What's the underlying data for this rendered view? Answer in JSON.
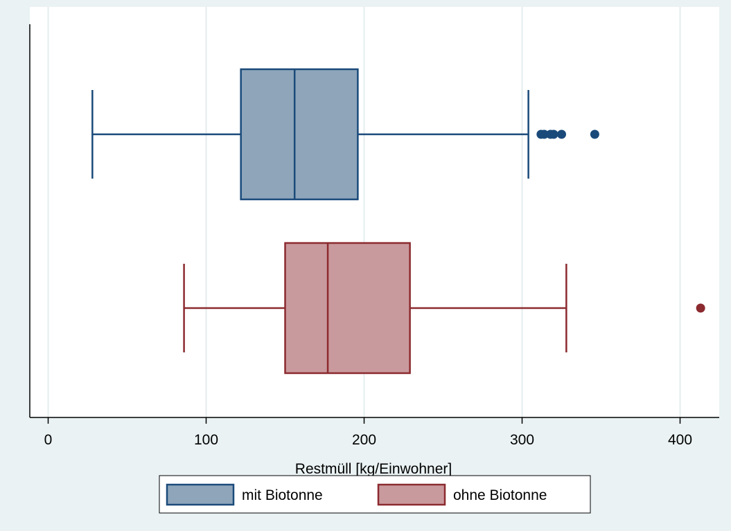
{
  "chart_data": {
    "type": "boxplot",
    "orientation": "horizontal",
    "xlabel": "Restmüll [kg/Einwohner]",
    "xlim": [
      -12,
      425
    ],
    "xticks": [
      0,
      100,
      200,
      300,
      400
    ],
    "xtick_labels": [
      "0",
      "100",
      "200",
      "300",
      "400"
    ],
    "grid": "vertical",
    "legend_position": "bottom",
    "series": [
      {
        "name": "mit Biotonne",
        "whisker_low": 28,
        "q1": 122,
        "median": 156,
        "q3": 196,
        "whisker_high": 304,
        "outliers": [
          312,
          314,
          318,
          320,
          325,
          346
        ],
        "color": "#1a4a7a",
        "fill": "#8ea5ba"
      },
      {
        "name": "ohne Biotonne",
        "whisker_low": 86,
        "q1": 150,
        "median": 177,
        "q3": 229,
        "whisker_high": 328,
        "outliers": [
          413
        ],
        "color": "#8b2a2f",
        "fill": "#c99a9d"
      }
    ]
  }
}
